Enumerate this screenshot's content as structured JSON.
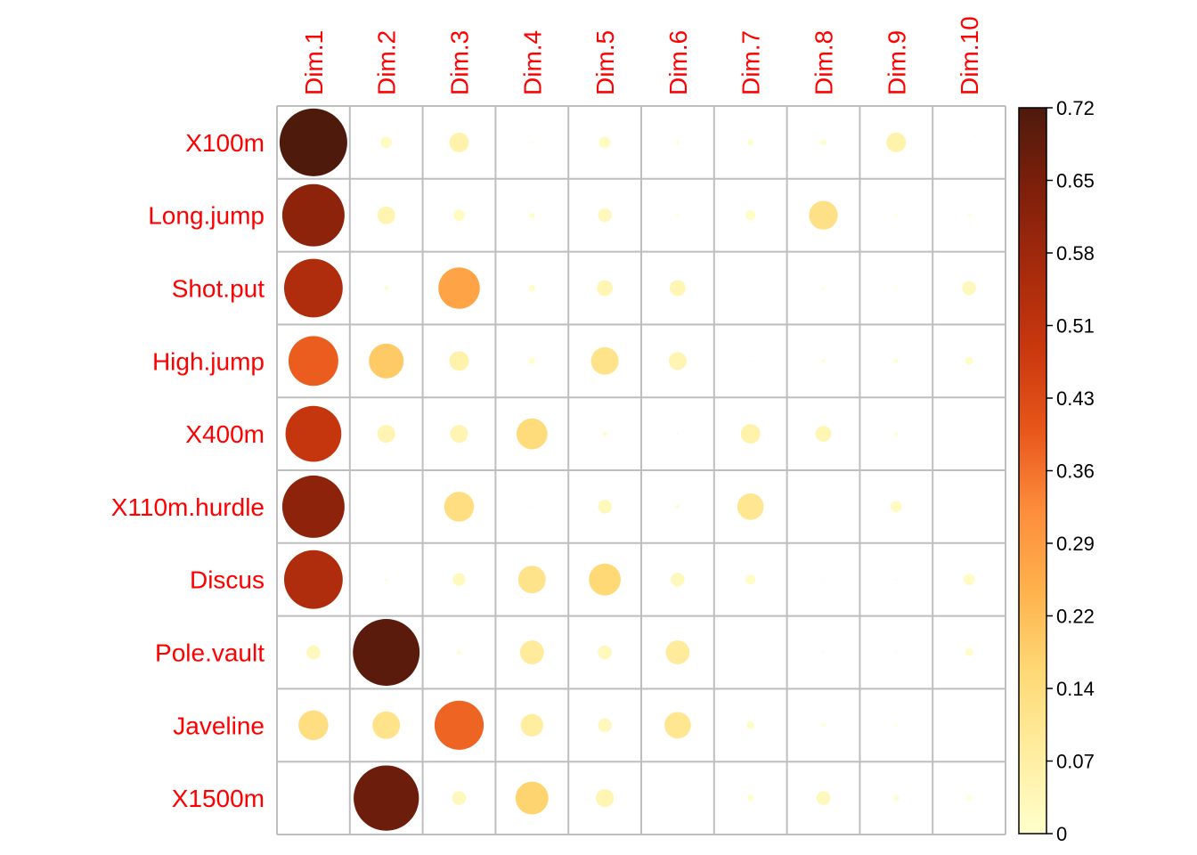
{
  "chart_data": {
    "type": "heatmap",
    "title": "",
    "xlabel": "",
    "ylabel": "",
    "rows": [
      "X100m",
      "Long.jump",
      "Shot.put",
      "High.jump",
      "X400m",
      "X110m.hurdle",
      "Discus",
      "Pole.vault",
      "Javeline",
      "X1500m"
    ],
    "columns": [
      "Dim.1",
      "Dim.2",
      "Dim.3",
      "Dim.4",
      "Dim.5",
      "Dim.6",
      "Dim.7",
      "Dim.8",
      "Dim.9",
      "Dim.10"
    ],
    "values": [
      [
        0.72,
        0.02,
        0.06,
        0.001,
        0.02,
        0.002,
        0.005,
        0.005,
        0.06,
        0.001
      ],
      [
        0.61,
        0.05,
        0.02,
        0.005,
        0.03,
        0.001,
        0.015,
        0.13,
        0.001,
        0.001
      ],
      [
        0.54,
        0.003,
        0.27,
        0.006,
        0.04,
        0.04,
        0.0,
        0.001,
        0.001,
        0.03
      ],
      [
        0.39,
        0.19,
        0.06,
        0.006,
        0.12,
        0.05,
        0.0005,
        0.002,
        0.003,
        0.01
      ],
      [
        0.49,
        0.05,
        0.05,
        0.15,
        0.003,
        0.0005,
        0.06,
        0.04,
        0.002,
        0.0005
      ],
      [
        0.61,
        0.0004,
        0.14,
        0.0005,
        0.03,
        0.002,
        0.11,
        0.0,
        0.02,
        0.0
      ],
      [
        0.54,
        0.001,
        0.025,
        0.12,
        0.16,
        0.03,
        0.015,
        0.0005,
        0.0005,
        0.02
      ],
      [
        0.03,
        0.7,
        0.003,
        0.09,
        0.03,
        0.09,
        0.0,
        0.0005,
        0.0005,
        0.01
      ],
      [
        0.14,
        0.12,
        0.38,
        0.08,
        0.03,
        0.11,
        0.01,
        0.002,
        0.001,
        0.0
      ],
      [
        0.0,
        0.67,
        0.03,
        0.17,
        0.05,
        0.0005,
        0.006,
        0.03,
        0.005,
        0.003
      ]
    ],
    "colorbar": {
      "min": 0,
      "max": 0.72,
      "ticks": [
        "0",
        "0.07",
        "0.14",
        "0.22",
        "0.29",
        "0.36",
        "0.43",
        "0.51",
        "0.58",
        "0.65",
        "0.72"
      ],
      "colors": [
        "#FFFFCC",
        "#FFEDA0",
        "#FED976",
        "#FEB24C",
        "#FD8D3C",
        "#E8561A",
        "#C9380E",
        "#A62A0C",
        "#7E1F0B",
        "#4E1A0C"
      ]
    },
    "grid": true,
    "legend": "right",
    "label_color": "#FF0000",
    "grid_color": "#BEBEBE"
  }
}
